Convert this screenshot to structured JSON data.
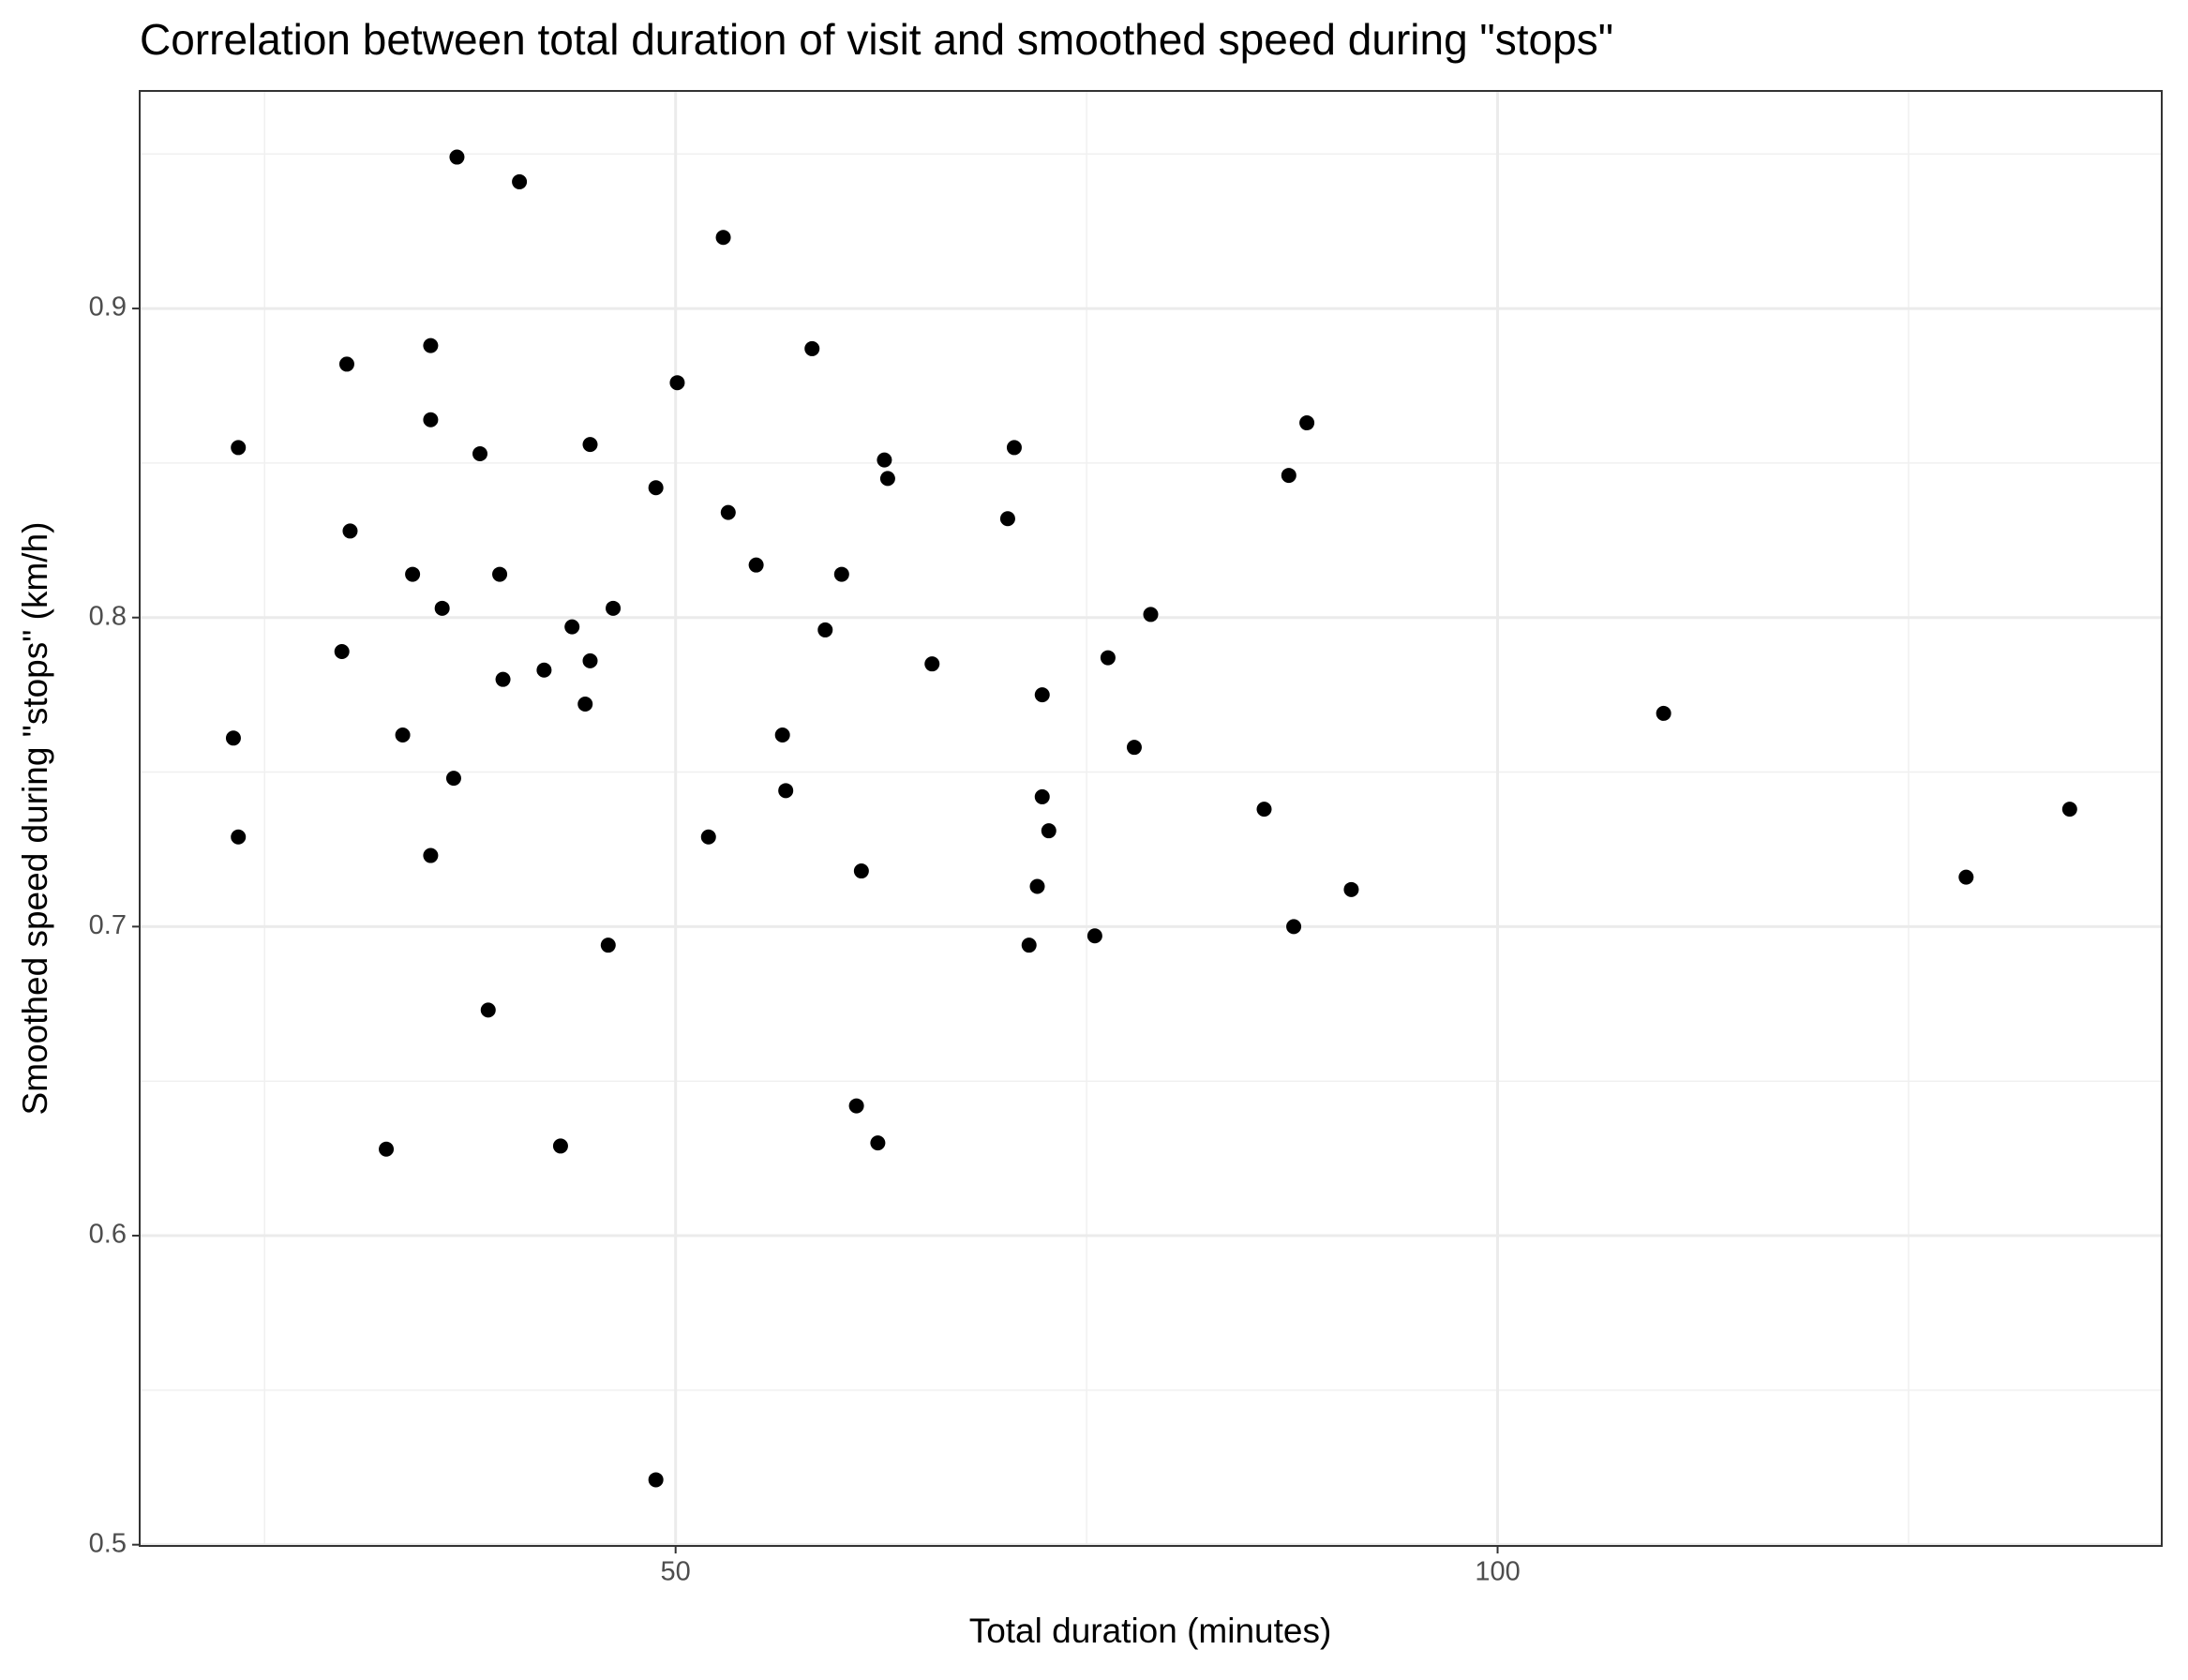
{
  "chart_data": {
    "type": "scatter",
    "title": "Correlation between total duration of visit and smoothed speed during \"stops\"",
    "x_label": "Total duration (minutes)",
    "y_label": "Smoothed speed during \"stops\" (km/h)",
    "x": [
      36.7,
      40.5,
      52.9,
      35.1,
      58.3,
      30.0,
      50.1,
      35.1,
      88.4,
      23.4,
      70.6,
      44.8,
      38.1,
      62.7,
      87.3,
      62.9,
      48.8,
      53.2,
      70.2,
      30.2,
      54.9,
      34.0,
      39.3,
      60.1,
      35.8,
      46.2,
      78.9,
      43.7,
      59.1,
      29.7,
      76.3,
      44.8,
      65.6,
      42.0,
      39.5,
      72.3,
      44.5,
      110.1,
      23.1,
      56.5,
      33.4,
      77.9,
      36.5,
      56.7,
      72.3,
      85.8,
      134.8,
      72.7,
      52.0,
      23.4,
      35.1,
      61.3,
      128.5,
      72.0,
      91.1,
      87.6,
      75.5,
      71.5,
      45.9,
      38.6,
      61.0,
      32.4,
      43.0,
      62.3,
      48.8
    ],
    "values": [
      0.949,
      0.941,
      0.923,
      0.888,
      0.887,
      0.882,
      0.876,
      0.864,
      0.863,
      0.855,
      0.855,
      0.856,
      0.853,
      0.851,
      0.846,
      0.845,
      0.842,
      0.834,
      0.832,
      0.828,
      0.817,
      0.814,
      0.814,
      0.814,
      0.803,
      0.803,
      0.801,
      0.797,
      0.796,
      0.789,
      0.787,
      0.786,
      0.785,
      0.783,
      0.78,
      0.775,
      0.772,
      0.769,
      0.761,
      0.762,
      0.762,
      0.758,
      0.748,
      0.744,
      0.742,
      0.738,
      0.738,
      0.731,
      0.729,
      0.729,
      0.723,
      0.718,
      0.716,
      0.713,
      0.712,
      0.7,
      0.697,
      0.694,
      0.694,
      0.673,
      0.642,
      0.628,
      0.629,
      0.63,
      0.521
    ],
    "color": "#000000",
    "xlim": [
      17.4,
      140.4
    ],
    "xticks": [
      50,
      100
    ],
    "xminor": [
      25,
      75,
      125
    ],
    "ylim": [
      0.4996,
      0.9704
    ],
    "yticks": [
      0.5,
      0.6,
      0.7,
      0.8,
      0.9
    ],
    "yminor": [
      0.55,
      0.65,
      0.75,
      0.85,
      0.95
    ],
    "grid": true
  }
}
